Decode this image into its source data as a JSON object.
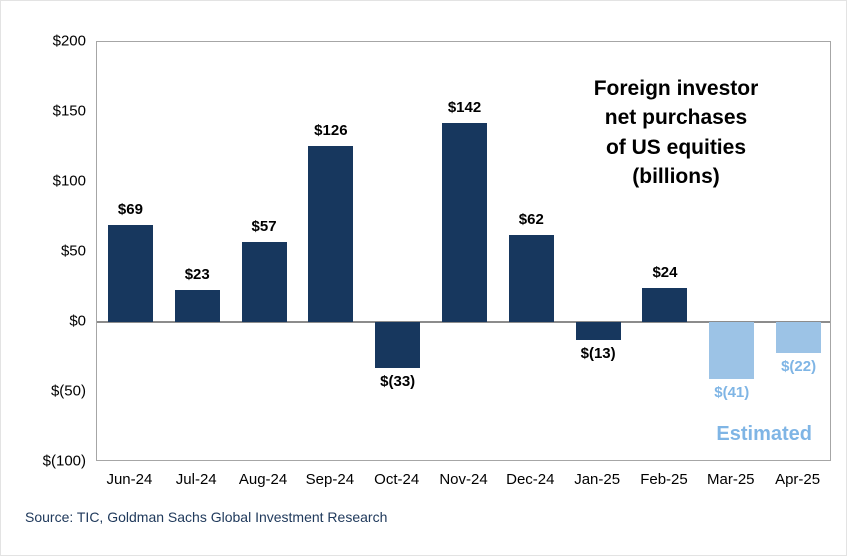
{
  "page": {
    "source": "Source: TIC, Goldman Sachs Global Investment Research"
  },
  "chart_data": {
    "type": "bar",
    "title": "Foreign investor\nnet purchases\nof US equities\n(billions)",
    "xlabel": "",
    "ylabel": "",
    "categories": [
      "Jun-24",
      "Jul-24",
      "Aug-24",
      "Sep-24",
      "Oct-24",
      "Nov-24",
      "Dec-24",
      "Jan-25",
      "Feb-25",
      "Mar-25",
      "Apr-25"
    ],
    "values": [
      69,
      23,
      57,
      126,
      -33,
      142,
      62,
      -13,
      24,
      -41,
      -22
    ],
    "labels": [
      "$69",
      "$23",
      "$57",
      "$126",
      "$(33)",
      "$142",
      "$62",
      "$(13)",
      "$24",
      "$(41)",
      "$(22)"
    ],
    "estimated": [
      false,
      false,
      false,
      false,
      false,
      false,
      false,
      false,
      false,
      true,
      true
    ],
    "estimated_label": "Estimated",
    "ylim": [
      -100,
      200
    ],
    "y_ticks": [
      {
        "value": 200,
        "label": "$200"
      },
      {
        "value": 150,
        "label": "$150"
      },
      {
        "value": 100,
        "label": "$100"
      },
      {
        "value": 50,
        "label": "$50"
      },
      {
        "value": 0,
        "label": "$0"
      },
      {
        "value": -50,
        "label": "$(50)"
      },
      {
        "value": -100,
        "label": "$(100)"
      }
    ],
    "grid": false,
    "legend_position": "none",
    "colors": {
      "actual_bar": "#17375E",
      "estimated_bar": "#9CC3E6",
      "estimated_text": "#7FB5E5",
      "zero_line": "#8C8C8C",
      "plot_border": "#A6A6A6"
    }
  }
}
